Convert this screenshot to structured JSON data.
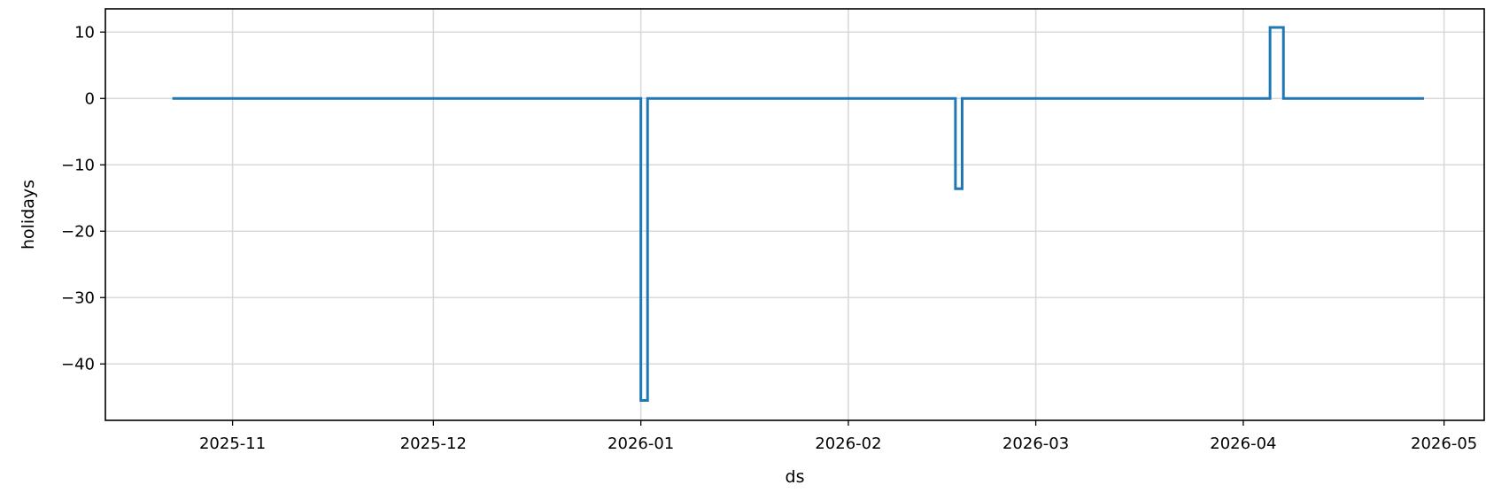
{
  "chart_data": {
    "type": "line",
    "step": "post",
    "title": "",
    "xlabel": "ds",
    "ylabel": "holidays",
    "x_type": "date",
    "xlim": [
      "2025-10-13",
      "2026-05-07"
    ],
    "ylim": [
      -48.5,
      13.5
    ],
    "x_ticks": [
      {
        "value": "2025-11-01",
        "label": "2025-11"
      },
      {
        "value": "2025-12-01",
        "label": "2025-12"
      },
      {
        "value": "2026-01-01",
        "label": "2026-01"
      },
      {
        "value": "2026-02-01",
        "label": "2026-02"
      },
      {
        "value": "2026-03-01",
        "label": "2026-03"
      },
      {
        "value": "2026-04-01",
        "label": "2026-04"
      },
      {
        "value": "2026-05-01",
        "label": "2026-05"
      }
    ],
    "y_ticks": [
      {
        "value": 10,
        "label": "10"
      },
      {
        "value": 0,
        "label": "0"
      },
      {
        "value": -10,
        "label": "−10"
      },
      {
        "value": -20,
        "label": "−20"
      },
      {
        "value": -30,
        "label": "−30"
      },
      {
        "value": -40,
        "label": "−40"
      }
    ],
    "grid": true,
    "series": [
      {
        "color": "#1f77b4",
        "x": [
          "2025-10-23",
          "2026-01-01",
          "2026-01-02",
          "2026-02-17",
          "2026-02-18",
          "2026-04-05",
          "2026-04-07",
          "2026-04-28"
        ],
        "y": [
          0,
          -45.5,
          0,
          -13.6,
          0,
          10.7,
          0,
          0
        ]
      }
    ]
  }
}
